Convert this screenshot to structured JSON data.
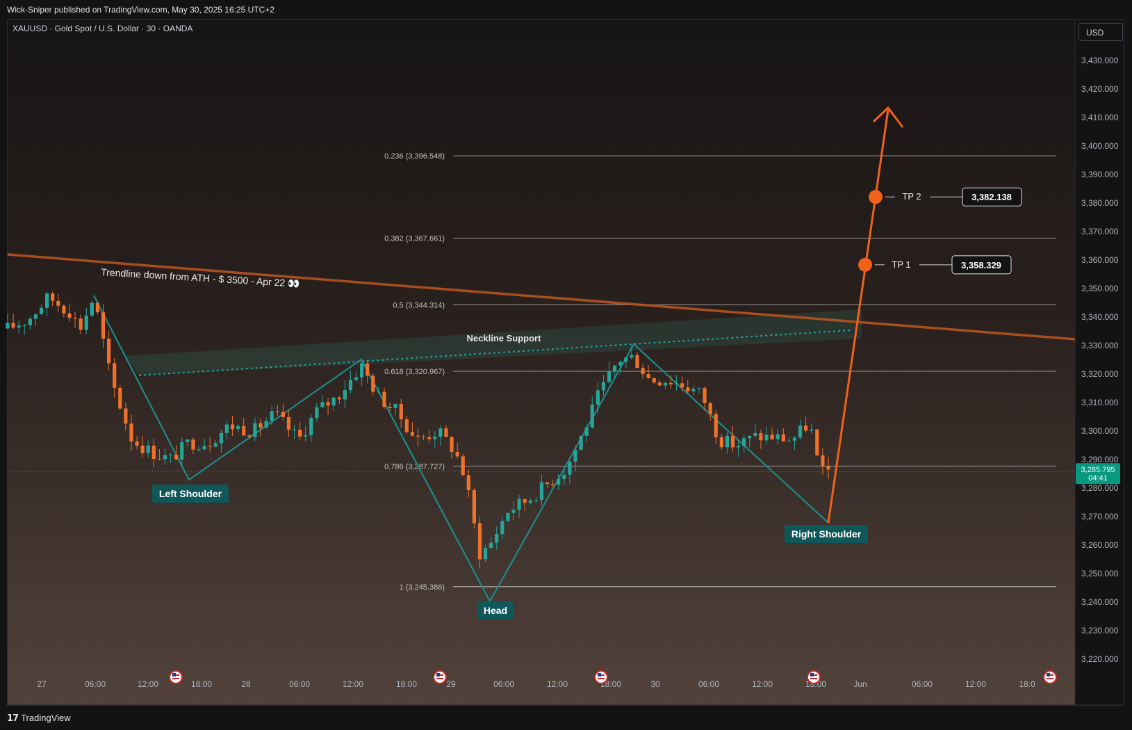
{
  "header": {
    "published": "Wick-Sniper published on TradingView.com, May 30, 2025 16:25 UTC+2"
  },
  "symbol_line": "XAUUSD · Gold Spot / U.S. Dollar · 30 · OANDA",
  "currency": "USD",
  "footer": {
    "brand": "TradingView"
  },
  "colors": {
    "bull": "#26a69a",
    "bear": "#f0722a",
    "pattern": "#1f8a8a",
    "trendline": "#b8531f",
    "projection": "#f0621a",
    "price_badge": "#089981"
  },
  "chart_data": {
    "type": "candlestick",
    "ylim": [
      3215,
      3435
    ],
    "y_ticks": [
      "3,220.000",
      "3,230.000",
      "3,240.000",
      "3,250.000",
      "3,260.000",
      "3,270.000",
      "3,280.000",
      "3,290.000",
      "3,300.000",
      "3,310.000",
      "3,320.000",
      "3,330.000",
      "3,340.000",
      "3,350.000",
      "3,360.000",
      "3,370.000",
      "3,380.000",
      "3,390.000",
      "3,400.000",
      "3,410.000",
      "3,420.000",
      "3,430.000"
    ],
    "x_ticks": [
      "27",
      "06:00",
      "12:00",
      "18:00",
      "28",
      "06:00",
      "12:00",
      "18:00",
      "29",
      "06:00",
      "12:00",
      "18:00",
      "30",
      "06:00",
      "12:00",
      "18:00",
      "Jun",
      "06:00",
      "12:00",
      "18:0"
    ],
    "current_price": {
      "value": "3,285.795",
      "countdown": "04:41",
      "price": 3285.795
    },
    "fib_levels": [
      {
        "label": "0.236 (3,396.548)",
        "price": 3396.548
      },
      {
        "label": "0.382 (3,367.661)",
        "price": 3367.661
      },
      {
        "label": "0.5 (3,344.314)",
        "price": 3344.314
      },
      {
        "label": "0.618 (3,320.967)",
        "price": 3320.967
      },
      {
        "label": "0.786 (3,287.727)",
        "price": 3287.727
      },
      {
        "label": "1 (3,245.386)",
        "price": 3245.386
      }
    ],
    "pattern_labels": {
      "left_shoulder": "Left Shoulder",
      "head": "Head",
      "right_shoulder": "Right Shoulder",
      "neckline": "Neckline Support",
      "trendline": "Trendline down from ATH - $ 3500 - Apr 22 👀"
    },
    "targets": [
      {
        "label": "TP 1",
        "value": "3,358.329",
        "price": 3358.329
      },
      {
        "label": "TP 2",
        "value": "3,382.138",
        "price": 3382.138
      }
    ],
    "event_markers": 5,
    "candle_count": 147
  }
}
